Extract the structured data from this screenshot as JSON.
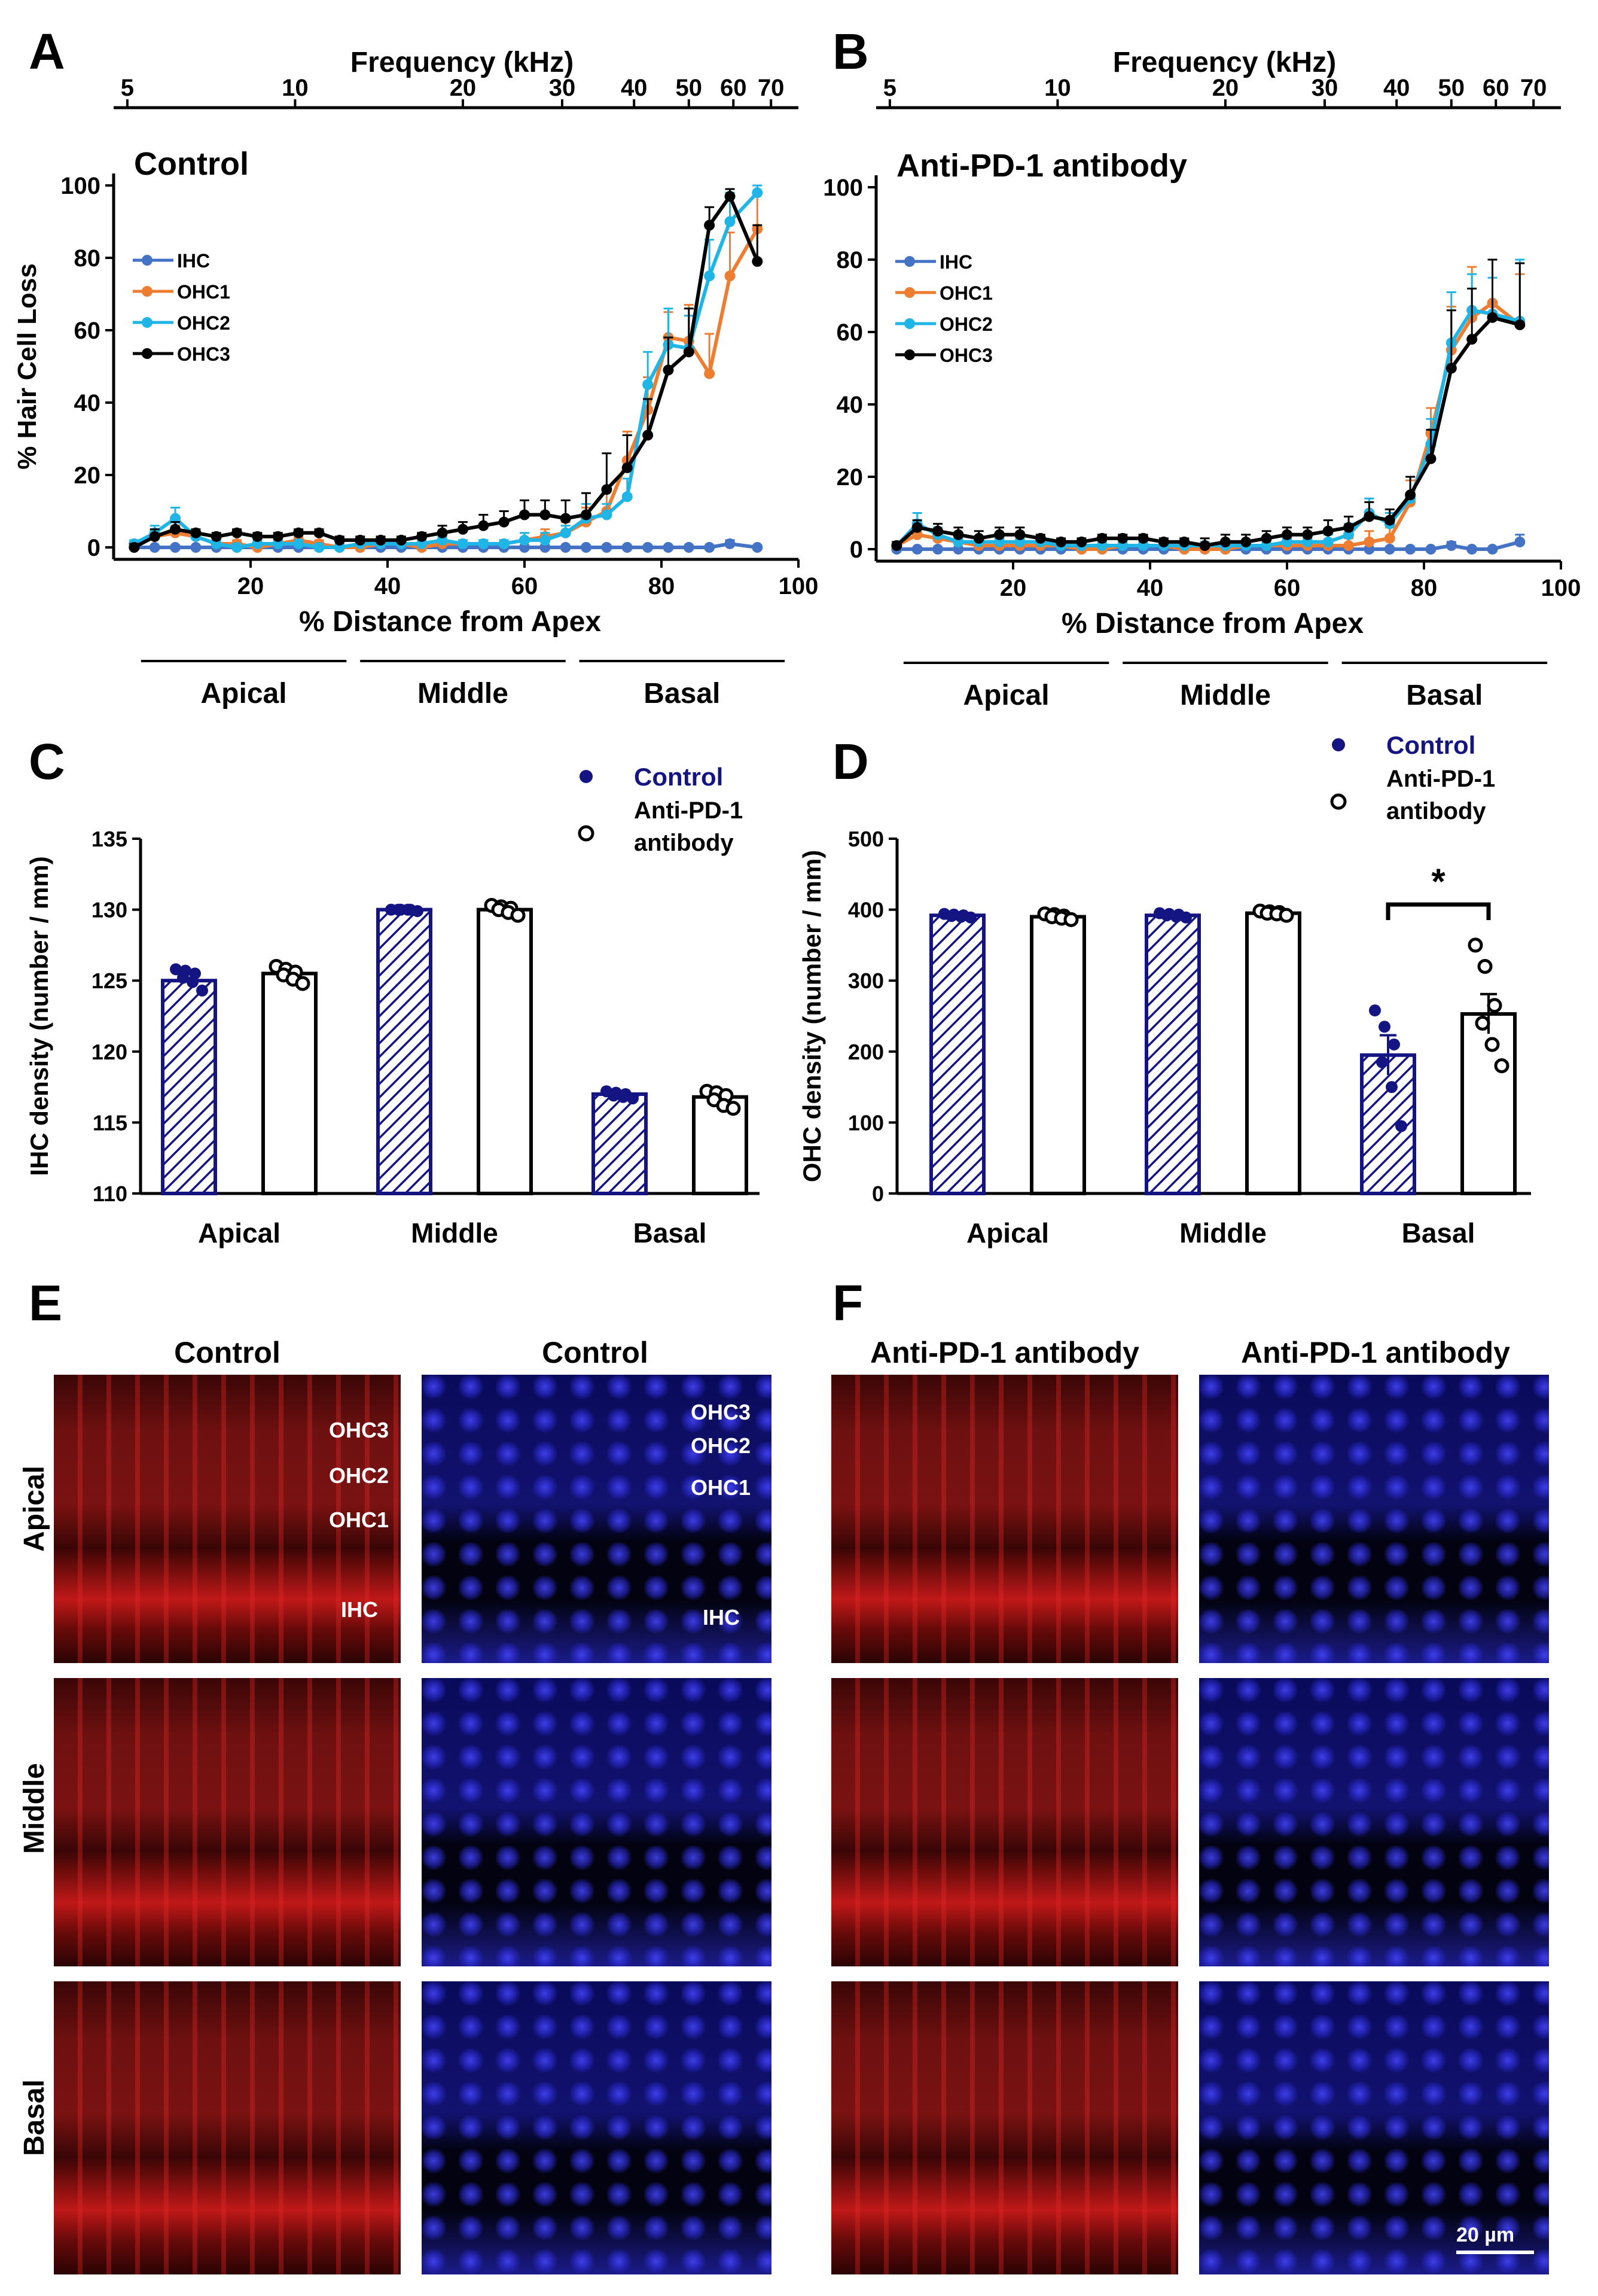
{
  "colors": {
    "ihc": "#4472C4",
    "ohc1": "#ED7D31",
    "ohc2": "#1FB5E6",
    "ohc3": "#000000",
    "control_bar": "#141483",
    "control_text": "#141483",
    "axis": "#000000",
    "scale_bar": "#ffffff"
  },
  "panel_letters": {
    "a": "A",
    "b": "B",
    "c": "C",
    "d": "D",
    "e": "E",
    "f": "F"
  },
  "chart_data": [
    {
      "id": "A",
      "type": "line",
      "title": "Control",
      "top_axis_title": "Frequency (kHz)",
      "top_axis_ticks": [
        "5",
        "10",
        "20",
        "30",
        "40",
        "50",
        "60",
        "70"
      ],
      "top_axis_positions_pct_distance": [
        2,
        26.5,
        51,
        65.5,
        76,
        84,
        90.5,
        96
      ],
      "xlabel": "% Distance from Apex",
      "ylabel": "% Hair Cell Loss",
      "xlim": [
        0,
        100
      ],
      "ylim": [
        0,
        100
      ],
      "xticks": [
        20,
        40,
        60,
        80,
        100
      ],
      "yticks": [
        0,
        20,
        40,
        60,
        80,
        100
      ],
      "regions": [
        "Apical",
        "Middle",
        "Basal"
      ],
      "region_ranges": [
        [
          4,
          34
        ],
        [
          36,
          66
        ],
        [
          68,
          98
        ]
      ],
      "x": [
        3,
        6,
        9,
        12,
        15,
        18,
        21,
        24,
        27,
        30,
        33,
        36,
        39,
        42,
        45,
        48,
        51,
        54,
        57,
        60,
        63,
        66,
        69,
        72,
        75,
        78,
        81,
        84,
        87,
        90,
        94
      ],
      "series": [
        {
          "name": "IHC",
          "values": [
            0,
            0,
            0,
            0,
            0,
            0,
            0,
            0,
            0,
            0,
            0,
            0,
            0,
            0,
            0,
            0,
            0,
            0,
            0,
            0,
            0,
            0,
            0,
            0,
            0,
            0,
            0,
            0,
            0,
            1,
            0
          ],
          "errors": [
            0,
            0,
            0,
            0,
            0,
            0,
            0,
            0,
            0,
            0,
            0,
            0,
            0,
            0,
            0,
            0,
            0,
            0,
            0,
            0,
            0,
            0,
            0,
            0,
            0,
            0,
            0,
            0,
            0,
            1,
            0
          ]
        },
        {
          "name": "OHC1",
          "values": [
            1,
            3,
            4,
            3,
            1,
            1,
            0,
            1,
            2,
            1,
            0,
            0,
            1,
            1,
            0,
            1,
            1,
            1,
            1,
            2,
            3,
            4,
            7,
            10,
            24,
            38,
            58,
            57,
            48,
            75,
            88
          ],
          "errors": [
            1,
            2,
            2,
            1,
            1,
            1,
            1,
            1,
            1,
            1,
            1,
            1,
            1,
            1,
            1,
            1,
            1,
            1,
            1,
            2,
            2,
            3,
            4,
            6,
            8,
            9,
            7,
            10,
            11,
            12,
            10
          ]
        },
        {
          "name": "OHC2",
          "values": [
            1,
            4,
            8,
            3,
            1,
            0,
            1,
            1,
            1,
            0,
            0,
            1,
            1,
            1,
            1,
            2,
            1,
            1,
            1,
            2,
            2,
            4,
            8,
            9,
            14,
            45,
            56,
            55,
            75,
            90,
            98
          ],
          "errors": [
            1,
            2,
            3,
            1,
            1,
            1,
            1,
            1,
            1,
            1,
            1,
            1,
            1,
            1,
            1,
            1,
            1,
            1,
            1,
            2,
            2,
            2,
            4,
            3,
            5,
            9,
            10,
            9,
            10,
            8,
            2
          ]
        },
        {
          "name": "OHC3",
          "values": [
            0,
            3,
            5,
            4,
            3,
            4,
            3,
            3,
            4,
            4,
            2,
            2,
            2,
            2,
            3,
            4,
            5,
            6,
            7,
            9,
            9,
            8,
            9,
            16,
            22,
            31,
            49,
            54,
            89,
            97,
            79
          ],
          "errors": [
            1,
            2,
            2,
            1,
            1,
            1,
            1,
            1,
            1,
            1,
            1,
            1,
            1,
            1,
            1,
            2,
            2,
            3,
            3,
            4,
            4,
            5,
            6,
            10,
            9,
            10,
            9,
            12,
            5,
            2,
            10
          ]
        }
      ]
    },
    {
      "id": "B",
      "type": "line",
      "title": "Anti-PD-1 antibody",
      "top_axis_title": "Frequency (kHz)",
      "top_axis_ticks": [
        "5",
        "10",
        "20",
        "30",
        "40",
        "50",
        "60",
        "70"
      ],
      "top_axis_positions_pct_distance": [
        2,
        26.5,
        51,
        65.5,
        76,
        84,
        90.5,
        96
      ],
      "xlabel": "% Distance from Apex",
      "ylabel": "",
      "xlim": [
        0,
        100
      ],
      "ylim": [
        0,
        100
      ],
      "xticks": [
        20,
        40,
        60,
        80,
        100
      ],
      "yticks": [
        0,
        20,
        40,
        60,
        80,
        100
      ],
      "regions": [
        "Apical",
        "Middle",
        "Basal"
      ],
      "region_ranges": [
        [
          4,
          34
        ],
        [
          36,
          66
        ],
        [
          68,
          98
        ]
      ],
      "x": [
        3,
        6,
        9,
        12,
        15,
        18,
        21,
        24,
        27,
        30,
        33,
        36,
        39,
        42,
        45,
        48,
        51,
        54,
        57,
        60,
        63,
        66,
        69,
        72,
        75,
        78,
        81,
        84,
        87,
        90,
        94
      ],
      "series": [
        {
          "name": "IHC",
          "values": [
            0,
            0,
            0,
            0,
            0,
            0,
            0,
            0,
            0,
            0,
            0,
            0,
            0,
            0,
            0,
            0,
            0,
            0,
            0,
            0,
            0,
            0,
            0,
            0,
            0,
            0,
            0,
            1,
            0,
            0,
            2
          ],
          "errors": [
            0,
            0,
            0,
            0,
            0,
            0,
            0,
            0,
            0,
            0,
            0,
            0,
            0,
            0,
            0,
            0,
            0,
            0,
            0,
            0,
            0,
            0,
            0,
            0,
            0,
            0,
            0,
            1,
            0,
            0,
            2
          ]
        },
        {
          "name": "OHC1",
          "values": [
            1,
            4,
            3,
            2,
            1,
            1,
            1,
            1,
            1,
            0,
            0,
            1,
            1,
            1,
            0,
            0,
            0,
            1,
            1,
            1,
            1,
            1,
            1,
            2,
            3,
            13,
            32,
            55,
            64,
            68,
            62
          ],
          "errors": [
            1,
            2,
            2,
            1,
            1,
            1,
            1,
            1,
            1,
            1,
            1,
            1,
            1,
            1,
            1,
            1,
            1,
            1,
            1,
            1,
            1,
            1,
            2,
            3,
            3,
            6,
            7,
            12,
            14,
            12,
            14
          ]
        },
        {
          "name": "OHC2",
          "values": [
            1,
            7,
            4,
            2,
            2,
            2,
            2,
            2,
            1,
            1,
            1,
            1,
            1,
            1,
            1,
            1,
            1,
            1,
            1,
            2,
            2,
            2,
            4,
            10,
            7,
            14,
            29,
            57,
            66,
            65,
            63
          ],
          "errors": [
            1,
            3,
            2,
            1,
            1,
            1,
            1,
            1,
            1,
            1,
            1,
            1,
            1,
            1,
            1,
            1,
            1,
            1,
            1,
            1,
            1,
            2,
            3,
            4,
            3,
            6,
            7,
            14,
            10,
            10,
            17
          ]
        },
        {
          "name": "OHC3",
          "values": [
            1,
            6,
            5,
            4,
            3,
            4,
            4,
            3,
            2,
            2,
            3,
            3,
            3,
            2,
            2,
            1,
            2,
            2,
            3,
            4,
            4,
            5,
            6,
            9,
            8,
            15,
            25,
            50,
            58,
            64,
            62
          ],
          "errors": [
            1,
            2,
            2,
            2,
            2,
            2,
            2,
            1,
            1,
            1,
            1,
            1,
            1,
            1,
            1,
            2,
            2,
            2,
            2,
            2,
            2,
            3,
            3,
            4,
            3,
            5,
            8,
            16,
            14,
            16,
            17
          ]
        }
      ]
    },
    {
      "id": "C",
      "type": "bar",
      "xlabel": "",
      "ylabel": "IHC density (number / mm)",
      "ylim": [
        110,
        135
      ],
      "yticks": [
        110,
        115,
        120,
        125,
        130,
        135
      ],
      "categories": [
        "Apical",
        "Middle",
        "Basal"
      ],
      "legend": [
        "Control",
        "Anti-PD-1 antibody"
      ],
      "legend_lines": [
        "Control",
        "Anti-PD-1",
        "antibody"
      ],
      "series": [
        {
          "name": "Control",
          "values": [
            125,
            130,
            117
          ],
          "sem": [
            0.2,
            0,
            0.1
          ],
          "points": [
            [
              125.8,
              125.7,
              125.5,
              125.2,
              124.9,
              124.3
            ],
            [
              130,
              130,
              130,
              130,
              130,
              129.9
            ],
            [
              117.2,
              117.1,
              117,
              116.9,
              116.8,
              116.7
            ]
          ]
        },
        {
          "name": "Anti-PD-1 antibody",
          "values": [
            125.5,
            130,
            116.8
          ],
          "sem": [
            0.2,
            0.1,
            0.2
          ],
          "points": [
            [
              126,
              125.8,
              125.6,
              125.4,
              125.1,
              124.8
            ],
            [
              130.3,
              130.2,
              130.1,
              130,
              129.8,
              129.6
            ],
            [
              117.2,
              117.1,
              116.9,
              116.6,
              116.2,
              116
            ]
          ]
        }
      ]
    },
    {
      "id": "D",
      "type": "bar",
      "xlabel": "",
      "ylabel": "OHC density (number / mm)",
      "ylim": [
        0,
        500
      ],
      "yticks": [
        0,
        100,
        200,
        300,
        400,
        500
      ],
      "categories": [
        "Apical",
        "Middle",
        "Basal"
      ],
      "legend": [
        "Control",
        "Anti-PD-1 antibody"
      ],
      "legend_lines": [
        "Control",
        "Anti-PD-1",
        "antibody"
      ],
      "significance": {
        "label": "*",
        "category": "Basal"
      },
      "series": [
        {
          "name": "Control",
          "values": [
            392,
            392,
            195
          ],
          "sem": [
            2,
            2,
            28
          ],
          "points": [
            [
              394,
              393,
              392,
              391,
              390,
              389
            ],
            [
              395,
              394,
              393,
              392,
              390,
              389
            ],
            [
              258,
              235,
              210,
              185,
              150,
              95
            ]
          ]
        },
        {
          "name": "Anti-PD-1 antibody",
          "values": [
            390,
            395,
            253
          ],
          "sem": [
            2,
            1,
            28
          ],
          "points": [
            [
              394,
              393,
              391,
              390,
              388,
              386
            ],
            [
              398,
              397,
              396,
              395,
              394,
              392
            ],
            [
              350,
              320,
              265,
              240,
              210,
              180
            ]
          ]
        }
      ]
    }
  ],
  "panel_e": {
    "headers": [
      "Control",
      "Control"
    ],
    "row_labels": [
      "Apical",
      "Middle",
      "Basal"
    ],
    "red_labels": [
      "OHC3",
      "OHC2",
      "OHC1",
      "IHC"
    ],
    "blue_labels": [
      "OHC3",
      "OHC2",
      "OHC1",
      "IHC"
    ]
  },
  "panel_f": {
    "headers": [
      "Anti-PD-1 antibody",
      "Anti-PD-1 antibody"
    ],
    "scale_bar": "20 µm"
  }
}
